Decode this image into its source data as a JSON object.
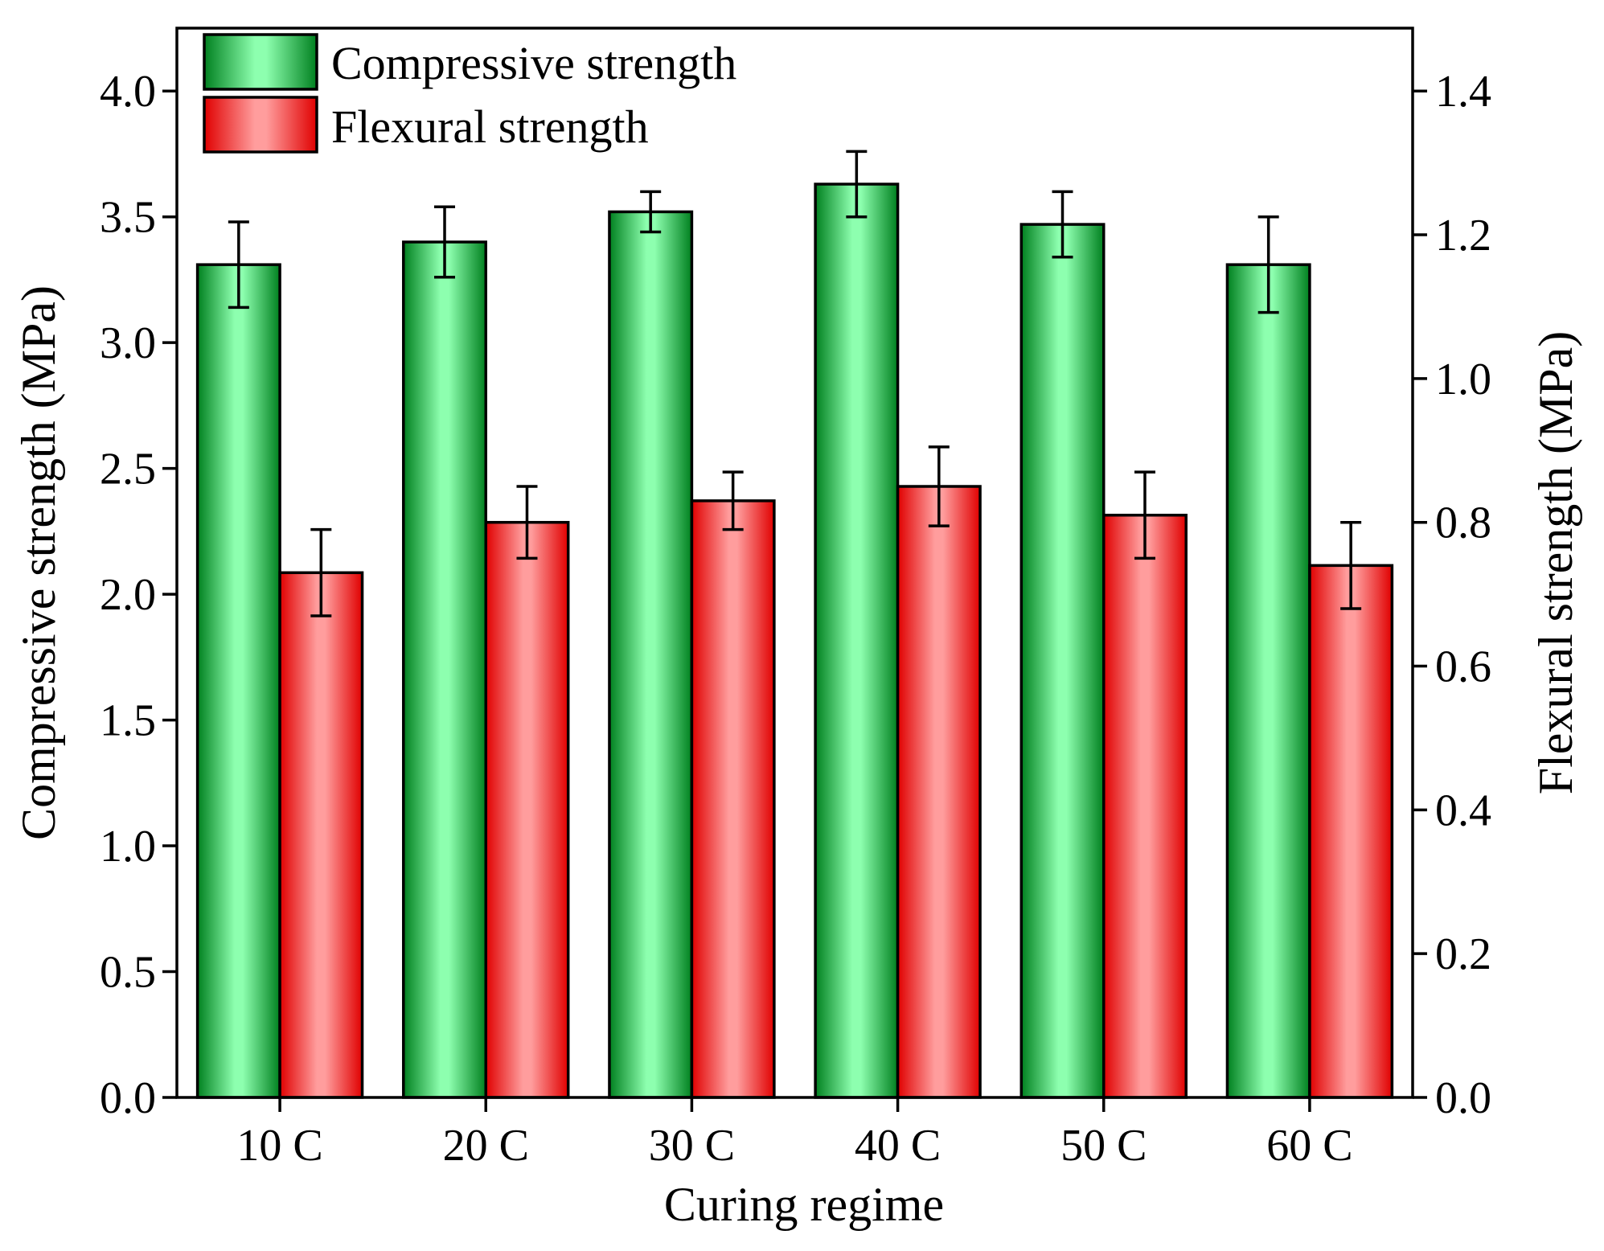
{
  "chart_data": {
    "type": "bar",
    "title": "",
    "xlabel": "Curing regime",
    "ylabel": "Compressive strength (MPa)",
    "y2label": "Flexural strength (MPa)",
    "categories": [
      "10 C",
      "20 C",
      "30 C",
      "40 C",
      "50 C",
      "60 C"
    ],
    "ylim": [
      0,
      4.25
    ],
    "y2lim": [
      0,
      1.4875
    ],
    "yticks": [
      "0.0",
      "0.5",
      "1.0",
      "1.5",
      "2.0",
      "2.5",
      "3.0",
      "3.5",
      "4.0"
    ],
    "y2ticks": [
      "0.0",
      "0.2",
      "0.4",
      "0.6",
      "0.8",
      "1.0",
      "1.2",
      "1.4"
    ],
    "legend_position": "top-left",
    "series": [
      {
        "name": "Compressive strength",
        "axis": "left",
        "color": "#1fae3c",
        "color_light": "#8dffaf",
        "values": [
          3.31,
          3.4,
          3.52,
          3.63,
          3.47,
          3.31
        ],
        "errors": [
          0.17,
          0.14,
          0.08,
          0.13,
          0.13,
          0.19
        ]
      },
      {
        "name": "Flexural strength",
        "axis": "right",
        "color": "#ee1c1c",
        "color_light": "#ff9d9d",
        "values": [
          0.73,
          0.8,
          0.83,
          0.85,
          0.81,
          0.74
        ],
        "errors": [
          0.06,
          0.05,
          0.04,
          0.055,
          0.06,
          0.06
        ]
      }
    ]
  }
}
